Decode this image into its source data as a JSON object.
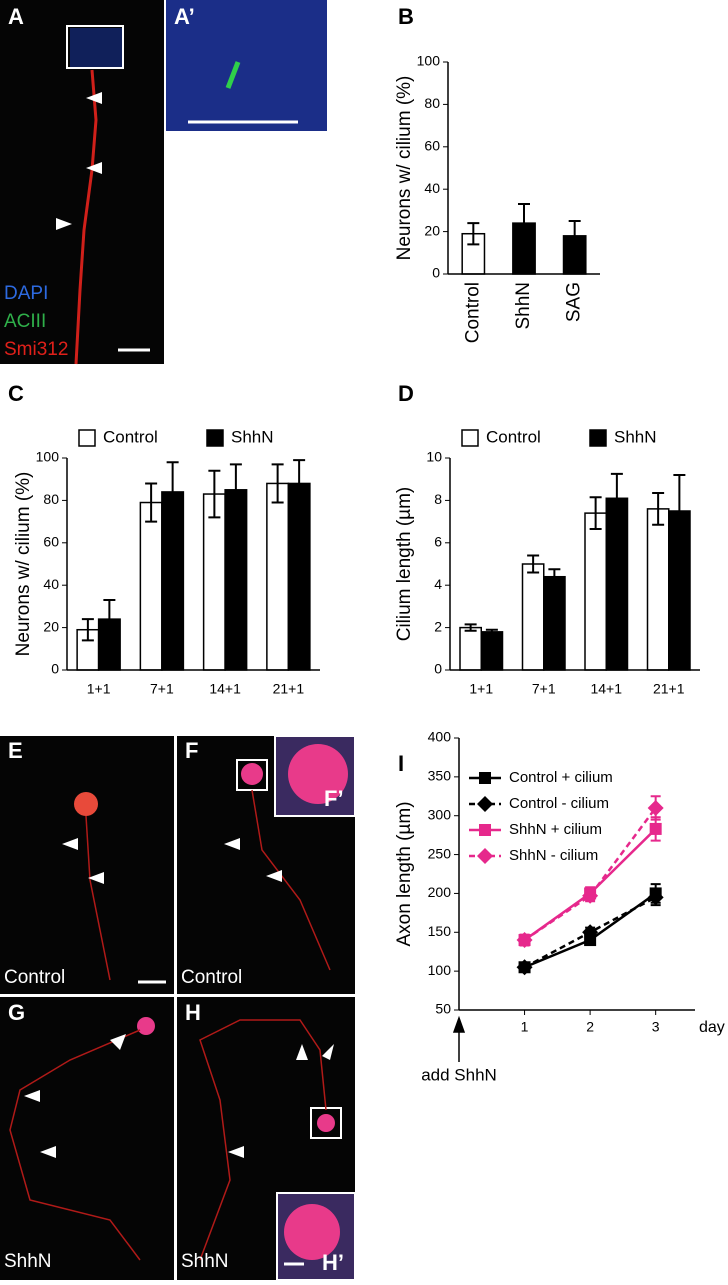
{
  "images": [
    {
      "label": "A",
      "captions": [
        "DAPI",
        "ACIII",
        "Smi312"
      ]
    },
    {
      "label": "A’"
    },
    {
      "label": "E",
      "captions": [
        "Control"
      ]
    },
    {
      "label": "F",
      "captions": [
        "Control"
      ]
    },
    {
      "label": "F’"
    },
    {
      "label": "G",
      "captions": [
        "ShhN"
      ]
    },
    {
      "label": "H",
      "captions": [
        "ShhN"
      ]
    },
    {
      "label": "H’"
    }
  ],
  "chart_data": [
    {
      "type": "bar",
      "panel": "B",
      "ylabel": "Neurons w/ cilium (%)",
      "categories": [
        "Control",
        "ShhN",
        "SAG"
      ],
      "values": [
        19,
        24,
        18
      ],
      "errors": [
        5,
        9,
        7
      ],
      "colors": [
        "#ffffff",
        "#000000",
        "#000000"
      ],
      "ylim": [
        0,
        100
      ],
      "yticks": [
        0,
        20,
        40,
        60,
        80,
        100
      ]
    },
    {
      "type": "bar",
      "panel": "C",
      "ylabel": "Neurons w/ cilium (%)",
      "legend": "top",
      "categories": [
        "1+1",
        "7+1",
        "14+1",
        "21+1"
      ],
      "series": [
        {
          "name": "Control",
          "color": "#ffffff",
          "values": [
            19,
            79,
            83,
            88
          ],
          "errors": [
            5,
            9,
            11,
            9
          ]
        },
        {
          "name": "ShhN",
          "color": "#000000",
          "values": [
            24,
            84,
            85,
            88
          ],
          "errors": [
            9,
            14,
            12,
            11
          ]
        }
      ],
      "ylim": [
        0,
        100
      ],
      "yticks": [
        0,
        20,
        40,
        60,
        80,
        100
      ]
    },
    {
      "type": "bar",
      "panel": "D",
      "ylabel": "Cilium length (µm)",
      "legend": "top",
      "categories": [
        "1+1",
        "7+1",
        "14+1",
        "21+1"
      ],
      "series": [
        {
          "name": "Control",
          "color": "#ffffff",
          "values": [
            2.0,
            5.0,
            7.4,
            7.6
          ],
          "errors": [
            0.15,
            0.4,
            0.75,
            0.75
          ]
        },
        {
          "name": "ShhN",
          "color": "#000000",
          "values": [
            1.8,
            4.4,
            8.1,
            7.5
          ],
          "errors": [
            0.1,
            0.35,
            1.15,
            1.7
          ]
        }
      ],
      "ylim": [
        0,
        10
      ],
      "yticks": [
        0,
        2,
        4,
        6,
        8,
        10
      ]
    },
    {
      "type": "line",
      "panel": "I",
      "ylabel": "Axon length (µm)",
      "xlabel": "day",
      "annotation": "add ShhN",
      "legend": "upper left",
      "x": [
        1,
        2,
        3
      ],
      "series": [
        {
          "name": "Control + cilium",
          "color": "#000000",
          "dashed": false,
          "marker": "square",
          "values": [
            105,
            140,
            200
          ],
          "errors": [
            5,
            6,
            12
          ]
        },
        {
          "name": "Control - cilium",
          "color": "#000000",
          "dashed": true,
          "marker": "diamond",
          "values": [
            105,
            150,
            195
          ],
          "errors": [
            4,
            6,
            10
          ]
        },
        {
          "name": "ShhN + cilium",
          "color": "#e6288c",
          "dashed": false,
          "marker": "square",
          "values": [
            140,
            200,
            283
          ],
          "errors": [
            7,
            8,
            15
          ]
        },
        {
          "name": "ShhN - cilium",
          "color": "#e6288c",
          "dashed": true,
          "marker": "diamond",
          "values": [
            140,
            197,
            310
          ],
          "errors": [
            6,
            7,
            15
          ]
        }
      ],
      "xlim": [
        0,
        3.6
      ],
      "xticks": [
        1,
        2,
        3
      ],
      "ylim": [
        50,
        400
      ],
      "yticks": [
        50,
        100,
        150,
        200,
        250,
        300,
        350,
        400
      ]
    }
  ]
}
